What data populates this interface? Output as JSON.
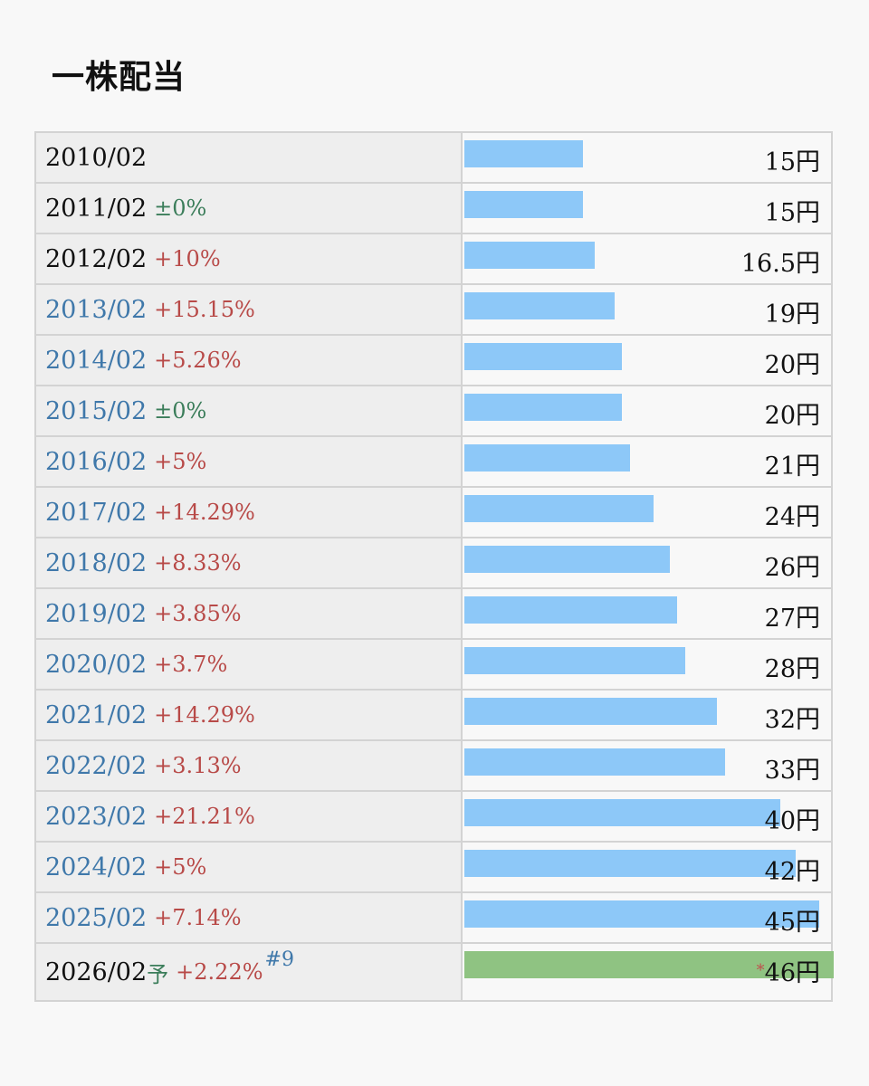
{
  "title": "一株配当",
  "chart_data": {
    "type": "bar",
    "unit": "円",
    "max_value": 46,
    "rows": [
      {
        "date": "2010/02",
        "change": "",
        "change_type": "none",
        "value": 15,
        "label": "15円",
        "link": false,
        "forecast": false
      },
      {
        "date": "2011/02",
        "change": "±0%",
        "change_type": "flat",
        "value": 15,
        "label": "15円",
        "link": false,
        "forecast": false
      },
      {
        "date": "2012/02",
        "change": "+10%",
        "change_type": "up",
        "value": 16.5,
        "label": "16.5円",
        "link": false,
        "forecast": false
      },
      {
        "date": "2013/02",
        "change": "+15.15%",
        "change_type": "up",
        "value": 19,
        "label": "19円",
        "link": true,
        "forecast": false
      },
      {
        "date": "2014/02",
        "change": "+5.26%",
        "change_type": "up",
        "value": 20,
        "label": "20円",
        "link": true,
        "forecast": false
      },
      {
        "date": "2015/02",
        "change": "±0%",
        "change_type": "flat",
        "value": 20,
        "label": "20円",
        "link": true,
        "forecast": false
      },
      {
        "date": "2016/02",
        "change": "+5%",
        "change_type": "up",
        "value": 21,
        "label": "21円",
        "link": true,
        "forecast": false
      },
      {
        "date": "2017/02",
        "change": "+14.29%",
        "change_type": "up",
        "value": 24,
        "label": "24円",
        "link": true,
        "forecast": false
      },
      {
        "date": "2018/02",
        "change": "+8.33%",
        "change_type": "up",
        "value": 26,
        "label": "26円",
        "link": true,
        "forecast": false
      },
      {
        "date": "2019/02",
        "change": "+3.85%",
        "change_type": "up",
        "value": 27,
        "label": "27円",
        "link": true,
        "forecast": false
      },
      {
        "date": "2020/02",
        "change": "+3.7%",
        "change_type": "up",
        "value": 28,
        "label": "28円",
        "link": true,
        "forecast": false
      },
      {
        "date": "2021/02",
        "change": "+14.29%",
        "change_type": "up",
        "value": 32,
        "label": "32円",
        "link": true,
        "forecast": false
      },
      {
        "date": "2022/02",
        "change": "+3.13%",
        "change_type": "up",
        "value": 33,
        "label": "33円",
        "link": true,
        "forecast": false
      },
      {
        "date": "2023/02",
        "change": "+21.21%",
        "change_type": "up",
        "value": 40,
        "label": "40円",
        "link": true,
        "forecast": false
      },
      {
        "date": "2024/02",
        "change": "+5%",
        "change_type": "up",
        "value": 42,
        "label": "42円",
        "link": true,
        "forecast": false
      },
      {
        "date": "2025/02",
        "change": "+7.14%",
        "change_type": "up",
        "value": 45,
        "label": "45円",
        "link": true,
        "forecast": false
      },
      {
        "date": "2026/02",
        "forecast_mark": "予",
        "change": "+2.22%",
        "change_type": "up",
        "note": "#9",
        "value": 46,
        "label": "46円",
        "value_prefix": "*",
        "link": false,
        "forecast": true
      }
    ]
  },
  "colors": {
    "bar": "#8dc8f8",
    "forecast_bar": "#8fc382",
    "up": "#b84a48",
    "flat": "#3b7d5a",
    "link": "#3f78aa"
  }
}
